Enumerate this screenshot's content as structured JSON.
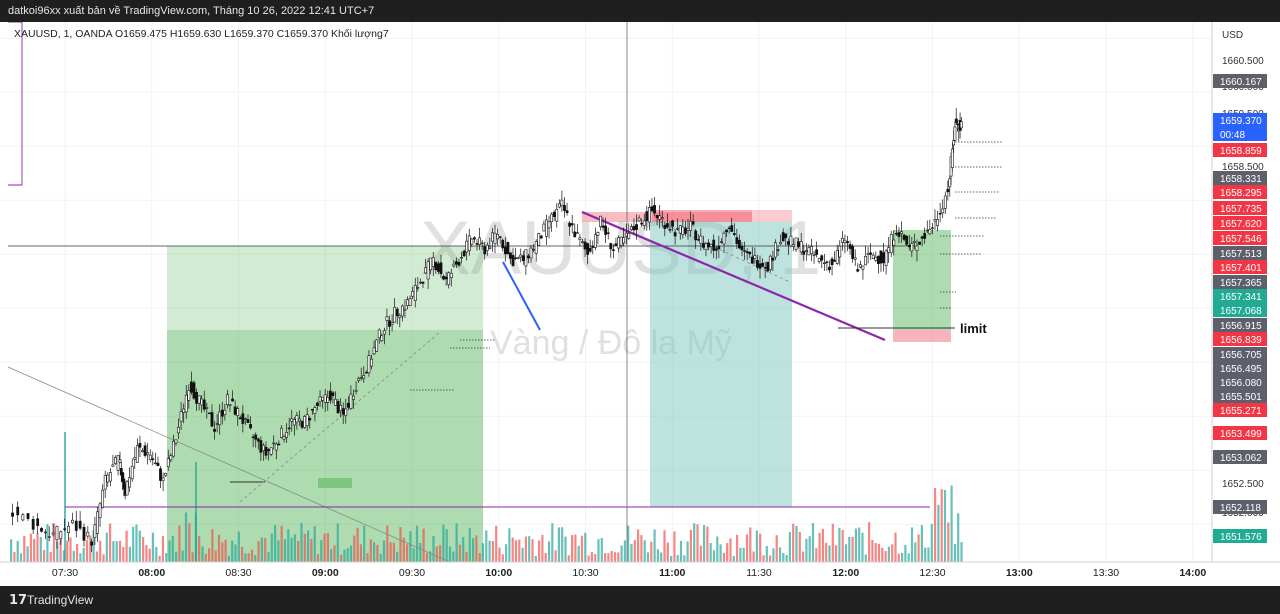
{
  "header": {
    "title": "datkoi96xx xuất bản về TradingView.com, Tháng 10 26, 2022 12:41 UTC+7"
  },
  "symbol_line": "XAUUSD, 1, OANDA  O1659.475  H1659.630  L1659.370  C1659.370  Khối lượng7",
  "footer": {
    "logo": "17",
    "brand": "TradingView"
  },
  "colors": {
    "up_candle": "#ffffff",
    "down_candle": "#111111",
    "green_zone": "#4caf50",
    "teal_zone": "#7ec8c0",
    "red_zone": "#f06a7a",
    "trend_line": "#8e24aa",
    "vol_up": "#26a69a",
    "vol_down": "#ef5350",
    "price_red": "#f23645",
    "price_green": "#22ab94",
    "price_gray": "#5d606b",
    "price_blue": "#2962ff"
  },
  "chart_data": {
    "type": "candlestick",
    "symbol": "XAUUSD",
    "interval": "1",
    "exchange": "OANDA",
    "ohlc": {
      "open": 1659.475,
      "high": 1659.63,
      "low": 1659.37,
      "close": 1659.37
    },
    "volume": 7,
    "currency": "USD",
    "watermark": {
      "line1": "XAUUSD, 1",
      "line2": "Vàng / Đô la Mỹ"
    },
    "x_ticks": [
      "07:30",
      "08:00",
      "08:30",
      "09:00",
      "09:30",
      "10:00",
      "10:30",
      "11:00",
      "11:30",
      "12:00",
      "12:30",
      "13:00",
      "13:30",
      "14:00"
    ],
    "y_ticks": [
      1660.5,
      1660.0,
      1659.5,
      1658.5,
      1652.5,
      1652.0
    ],
    "ylim": [
      1651.3,
      1661.3
    ],
    "series_path": [
      [
        0,
        1652.3
      ],
      [
        8,
        1652.0
      ],
      [
        14,
        1651.8
      ],
      [
        20,
        1652.0
      ],
      [
        26,
        1651.7
      ],
      [
        30,
        1652.8
      ],
      [
        34,
        1653.2
      ],
      [
        36,
        1652.6
      ],
      [
        40,
        1653.4
      ],
      [
        44,
        1653.3
      ],
      [
        48,
        1652.8
      ],
      [
        52,
        1653.6
      ],
      [
        56,
        1654.6
      ],
      [
        60,
        1654.2
      ],
      [
        64,
        1653.8
      ],
      [
        68,
        1654.3
      ],
      [
        72,
        1654.0
      ],
      [
        76,
        1653.6
      ],
      [
        80,
        1653.3
      ],
      [
        84,
        1653.6
      ],
      [
        88,
        1653.9
      ],
      [
        92,
        1653.9
      ],
      [
        96,
        1654.2
      ],
      [
        100,
        1654.4
      ],
      [
        104,
        1654.0
      ],
      [
        108,
        1654.6
      ],
      [
        112,
        1655.0
      ],
      [
        116,
        1655.6
      ],
      [
        120,
        1655.9
      ],
      [
        124,
        1656.1
      ],
      [
        128,
        1656.5
      ],
      [
        132,
        1656.9
      ],
      [
        136,
        1656.5
      ],
      [
        140,
        1656.9
      ],
      [
        144,
        1657.3
      ],
      [
        148,
        1657.1
      ],
      [
        152,
        1657.4
      ],
      [
        156,
        1656.9
      ],
      [
        160,
        1656.9
      ],
      [
        164,
        1657.2
      ],
      [
        168,
        1657.6
      ],
      [
        172,
        1657.9
      ],
      [
        176,
        1657.4
      ],
      [
        180,
        1657.0
      ],
      [
        184,
        1657.6
      ],
      [
        188,
        1657.1
      ],
      [
        192,
        1657.3
      ],
      [
        196,
        1657.6
      ],
      [
        200,
        1657.8
      ],
      [
        204,
        1657.6
      ],
      [
        208,
        1657.4
      ],
      [
        212,
        1657.5
      ],
      [
        216,
        1657.2
      ],
      [
        220,
        1657.1
      ],
      [
        224,
        1657.6
      ],
      [
        228,
        1657.0
      ],
      [
        232,
        1656.9
      ],
      [
        236,
        1656.8
      ],
      [
        240,
        1657.3
      ],
      [
        244,
        1657.2
      ],
      [
        248,
        1657.1
      ],
      [
        252,
        1656.9
      ],
      [
        256,
        1656.8
      ],
      [
        260,
        1657.3
      ],
      [
        264,
        1656.7
      ],
      [
        268,
        1657.0
      ],
      [
        272,
        1656.9
      ],
      [
        276,
        1657.5
      ],
      [
        280,
        1657.1
      ],
      [
        284,
        1657.3
      ],
      [
        288,
        1657.6
      ],
      [
        292,
        1658.2
      ],
      [
        294,
        1659.4
      ],
      [
        296,
        1659.4
      ]
    ],
    "price_labels": [
      {
        "value": "1660.167",
        "color": "gray"
      },
      {
        "value": "1659.370",
        "color": "blue"
      },
      {
        "value": "00:48",
        "color": "blue"
      },
      {
        "value": "1658.859",
        "color": "red"
      },
      {
        "value": "1658.331",
        "color": "gray"
      },
      {
        "value": "1658.295",
        "color": "red"
      },
      {
        "value": "1657.735",
        "color": "red"
      },
      {
        "value": "1657.620",
        "color": "red"
      },
      {
        "value": "1657.546",
        "color": "red"
      },
      {
        "value": "1657.513",
        "color": "gray"
      },
      {
        "value": "1657.401",
        "color": "red"
      },
      {
        "value": "1657.365",
        "color": "gray"
      },
      {
        "value": "1657.341",
        "color": "green"
      },
      {
        "value": "1657.068",
        "color": "green"
      },
      {
        "value": "1656.915",
        "color": "gray"
      },
      {
        "value": "1656.839",
        "color": "red"
      },
      {
        "value": "1656.705",
        "color": "gray"
      },
      {
        "value": "1656.495",
        "color": "gray"
      },
      {
        "value": "1656.080",
        "color": "gray"
      },
      {
        "value": "1655.501",
        "color": "gray"
      },
      {
        "value": "1655.271",
        "color": "red"
      },
      {
        "value": "1653.499",
        "color": "red"
      },
      {
        "value": "1653.062",
        "color": "gray"
      },
      {
        "value": "1652.118",
        "color": "gray"
      },
      {
        "value": "1651.576",
        "color": "green"
      }
    ],
    "annotations": [
      {
        "text": "limit",
        "type": "label"
      }
    ],
    "grid": true
  }
}
